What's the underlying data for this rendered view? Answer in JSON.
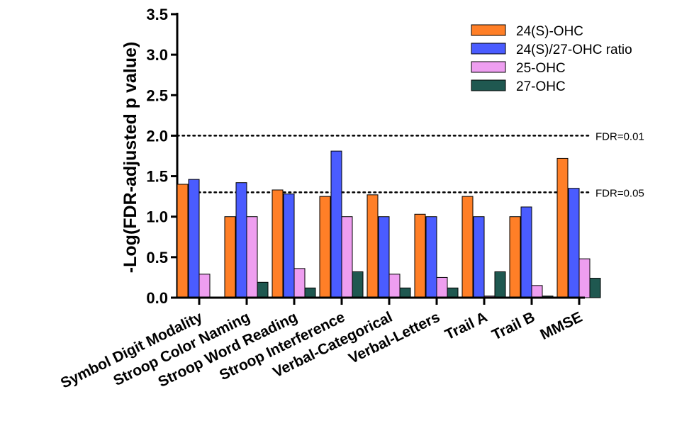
{
  "chart_data": {
    "type": "bar",
    "title": "",
    "xlabel": "",
    "ylabel": "-Log(FDR-adjusted p value)",
    "ylim": [
      0,
      3.5
    ],
    "yticks": [
      "0.0",
      "0.5",
      "1.0",
      "1.5",
      "2.0",
      "2.5",
      "3.0",
      "3.5"
    ],
    "categories": [
      "Symbol Digit Modality",
      "Stroop Color Naming",
      "Stroop Word Reading",
      "Stroop Interference",
      "Verbal-Categorical",
      "Verbal-Letters",
      "Trail A",
      "Trail B",
      "MMSE"
    ],
    "series": [
      {
        "name": "24(S)-OHC",
        "color": "#ff7f27",
        "values": [
          1.4,
          1.0,
          1.33,
          1.25,
          1.27,
          1.03,
          1.25,
          1.0,
          1.72
        ]
      },
      {
        "name": "24(S)/27-OHC ratio",
        "color": "#4a5cff",
        "values": [
          1.46,
          1.42,
          1.28,
          1.81,
          1.0,
          1.0,
          1.0,
          1.12,
          1.35
        ]
      },
      {
        "name": "25-OHC",
        "color": "#ee9ef0",
        "values": [
          0.29,
          1.0,
          0.36,
          1.0,
          0.29,
          0.25,
          0.02,
          0.15,
          0.48
        ]
      },
      {
        "name": "27-OHC",
        "color": "#1f5850",
        "values": [
          0.0,
          0.19,
          0.12,
          0.32,
          0.12,
          0.12,
          0.32,
          0.02,
          0.24
        ]
      }
    ],
    "thresholds": [
      {
        "value": 2.0,
        "label": "FDR=0.01"
      },
      {
        "value": 1.3,
        "label": "FDR=0.05"
      }
    ],
    "legend_position": "top-right",
    "grid": false
  }
}
